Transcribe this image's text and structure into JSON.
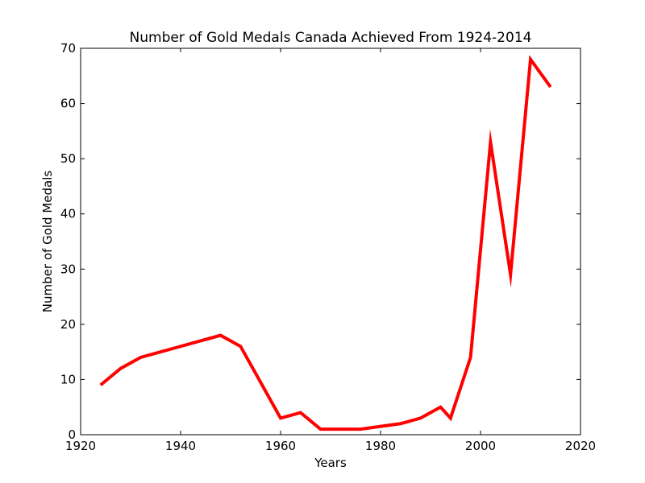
{
  "chart_data": {
    "type": "line",
    "title": "Number of Gold Medals Canada Achieved From 1924-2014",
    "xlabel": "Years",
    "ylabel": "Number of Gold Medals",
    "xlim": [
      1920,
      2020
    ],
    "ylim": [
      0,
      70
    ],
    "xticks": [
      1920,
      1940,
      1960,
      1980,
      2000,
      2020
    ],
    "yticks": [
      0,
      10,
      20,
      30,
      40,
      50,
      60,
      70
    ],
    "grid": false,
    "line_color": "#ff0000",
    "series": [
      {
        "x": [
          1924,
          1928,
          1932,
          1948,
          1952,
          1960,
          1964,
          1968,
          1972,
          1976,
          1984,
          1988,
          1992,
          1994,
          1998,
          2002,
          2006,
          2010,
          2014
        ],
        "y": [
          9,
          12,
          14,
          18,
          16,
          3,
          4,
          1,
          1,
          1,
          2,
          3,
          5,
          3,
          14,
          53,
          29,
          68,
          63
        ]
      }
    ]
  }
}
